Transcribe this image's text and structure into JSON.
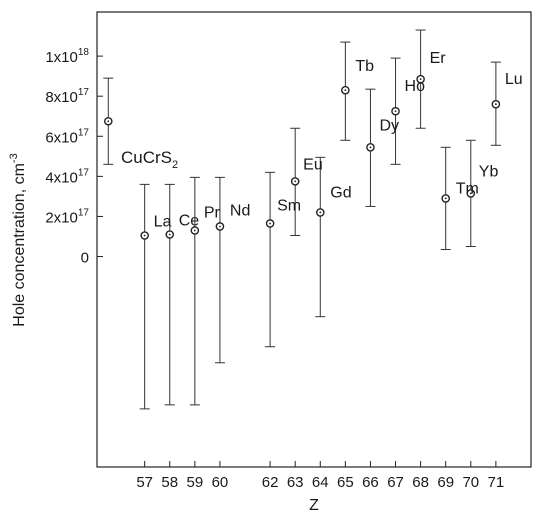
{
  "chart_data": {
    "type": "scatter",
    "xlabel": "Z",
    "ylabel": "Hole concentration, cm",
    "ylabel_sup": "-3",
    "xlim": [
      55.1,
      72.4
    ],
    "ylim": [
      -1.05e+18,
      1.22e+18
    ],
    "x_ticks": [
      {
        "value": 57,
        "label": "57"
      },
      {
        "value": 58,
        "label": "58"
      },
      {
        "value": 59,
        "label": "59"
      },
      {
        "value": 60,
        "label": "60"
      },
      {
        "value": 62,
        "label": "62"
      },
      {
        "value": 63,
        "label": "63"
      },
      {
        "value": 64,
        "label": "64"
      },
      {
        "value": 65,
        "label": "65"
      },
      {
        "value": 66,
        "label": "66"
      },
      {
        "value": 67,
        "label": "67"
      },
      {
        "value": 68,
        "label": "68"
      },
      {
        "value": 69,
        "label": "69"
      },
      {
        "value": 70,
        "label": "70"
      },
      {
        "value": 71,
        "label": "71"
      }
    ],
    "y_ticks": [
      {
        "value": 0,
        "mant": "0",
        "exp": ""
      },
      {
        "value": 2e+17,
        "mant": "2x10",
        "exp": "17"
      },
      {
        "value": 4e+17,
        "mant": "4x10",
        "exp": "17"
      },
      {
        "value": 6e+17,
        "mant": "6x10",
        "exp": "17"
      },
      {
        "value": 8e+17,
        "mant": "8x10",
        "exp": "17"
      },
      {
        "value": 1e+18,
        "mant": "1x10",
        "exp": "18"
      }
    ],
    "reference": {
      "x": 55.55,
      "y": 6.75e+17,
      "err_low": 4.6e+17,
      "err_high": 8.9e+17
    },
    "reference_label": {
      "text": "CuCrS",
      "sub": "2"
    },
    "points": [
      {
        "label": "La",
        "x": 57,
        "y": 1.05e+17,
        "err_low": -7.6e+17,
        "err_high": 3.6e+17
      },
      {
        "label": "Ce",
        "x": 58,
        "y": 1.1e+17,
        "err_low": -7.4e+17,
        "err_high": 3.6e+17
      },
      {
        "label": "Pr",
        "x": 59,
        "y": 1.3e+17,
        "err_low": -7.4e+17,
        "err_high": 3.95e+17
      },
      {
        "label": "Nd",
        "x": 60,
        "y": 1.5e+17,
        "err_low": -5.3e+17,
        "err_high": 3.95e+17
      },
      {
        "label": "Sm",
        "x": 62,
        "y": 1.65e+17,
        "err_low": -4.5e+17,
        "err_high": 4.2e+17
      },
      {
        "label": "Eu",
        "x": 63,
        "y": 3.75e+17,
        "err_low": 1.05e+17,
        "err_high": 6.4e+17
      },
      {
        "label": "Gd",
        "x": 64,
        "y": 2.2e+17,
        "err_low": -3e+17,
        "err_high": 4.95e+17
      },
      {
        "label": "Tb",
        "x": 65,
        "y": 8.3e+17,
        "err_low": 5.8e+17,
        "err_high": 1.07e+18
      },
      {
        "label": "Dy",
        "x": 66,
        "y": 5.45e+17,
        "err_low": 2.5e+17,
        "err_high": 8.35e+17
      },
      {
        "label": "Ho",
        "x": 67,
        "y": 7.25e+17,
        "err_low": 4.6e+17,
        "err_high": 9.9e+17
      },
      {
        "label": "Er",
        "x": 68,
        "y": 8.85e+17,
        "err_low": 6.4e+17,
        "err_high": 1.13e+18
      },
      {
        "label": "Tm",
        "x": 69,
        "y": 2.9e+17,
        "err_low": 3.5e+16,
        "err_high": 5.45e+17
      },
      {
        "label": "Yb",
        "x": 70,
        "y": 3.15e+17,
        "err_low": 5e+16,
        "err_high": 5.8e+17
      },
      {
        "label": "Lu",
        "x": 71,
        "y": 7.6e+17,
        "err_low": 5.55e+17,
        "err_high": 9.7e+17
      }
    ]
  }
}
